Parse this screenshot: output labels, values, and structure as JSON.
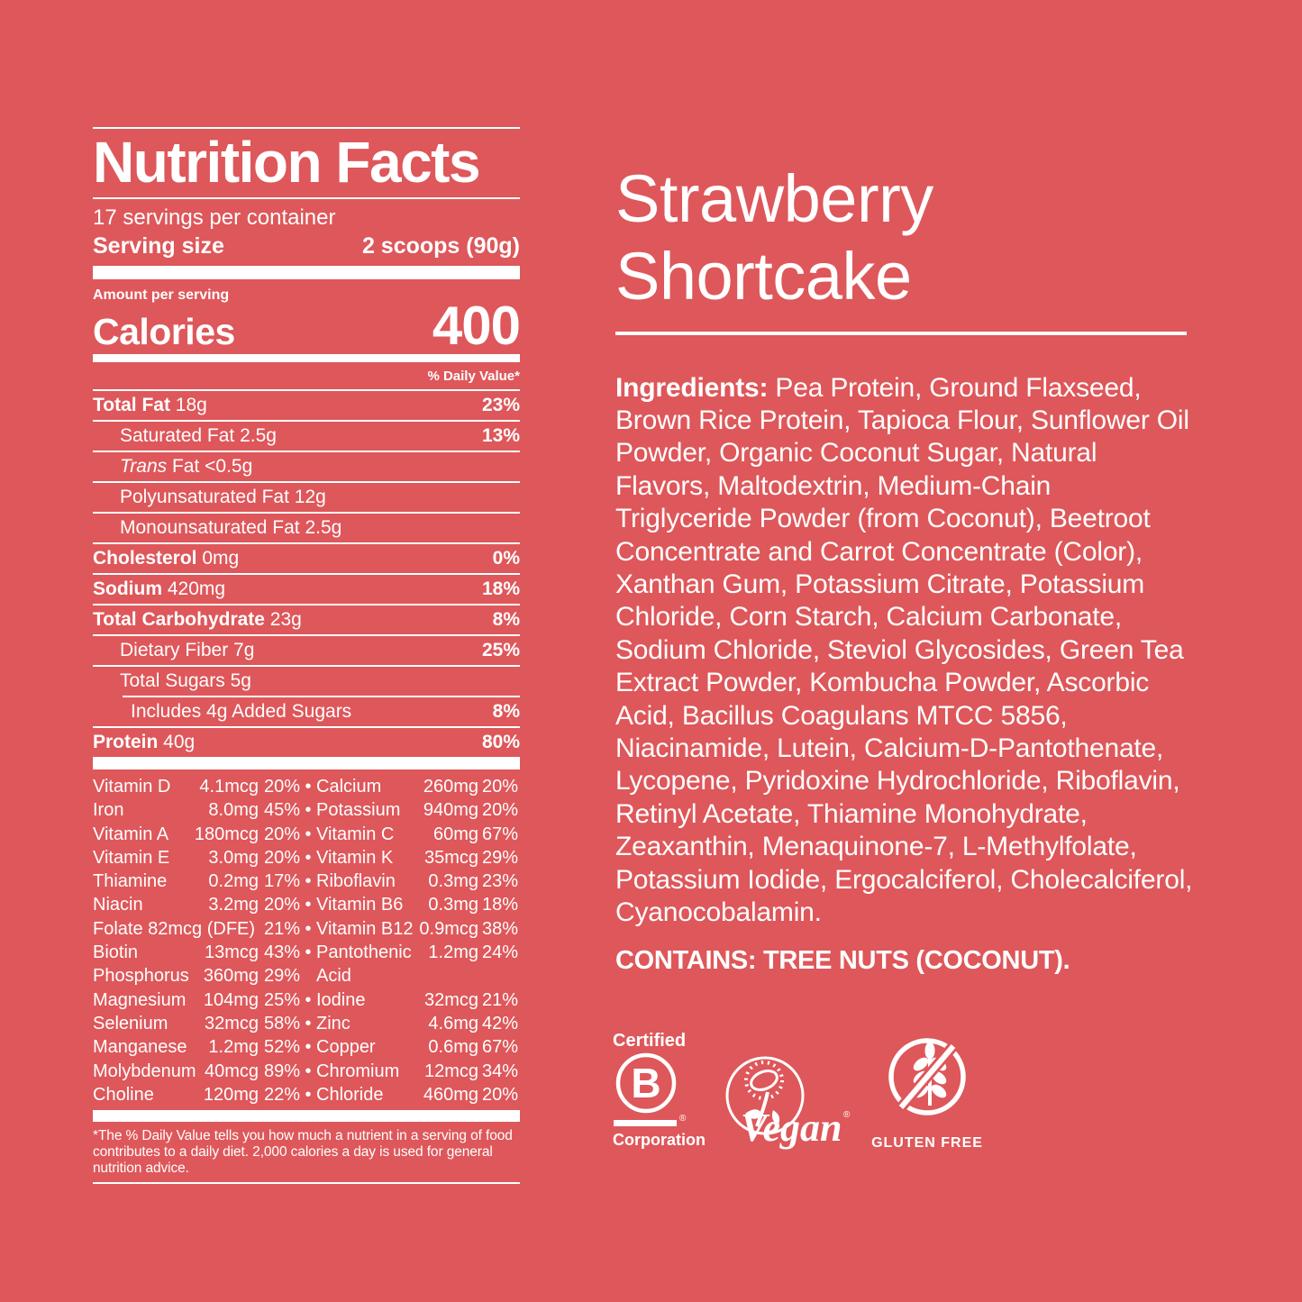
{
  "colors": {
    "background": "#DE575A",
    "foreground": "#FFFFFF"
  },
  "product": {
    "flavor": "Strawberry Shortcake",
    "ingredients_label": "Ingredients:",
    "ingredients": "Pea Protein, Ground Flaxseed, Brown Rice Protein, Tapioca Flour, Sunflower Oil Powder, Organic Coconut Sugar, Natural Flavors, Maltodextrin, Medium-Chain Triglyceride Powder (from Coconut), Beetroot Concentrate and Carrot Concentrate (Color), Xanthan Gum, Potassium Citrate, Potassium Chloride, Corn Starch, Calcium Carbonate, Sodium Chloride, Steviol Glycosides, Green Tea Extract Powder, Kombucha Powder, Ascorbic Acid, Bacillus Coagulans MTCC 5856, Niacinamide, Lutein, Calcium-D-Pantothenate, Lycopene, Pyridoxine Hydrochloride, Riboflavin, Retinyl Acetate, Thiamine Monohydrate, Zeaxanthin, Menaquinone-7, L-Methylfolate, Potassium Iodide, Ergocalciferol, Cholecalciferol, Cyanocobalamin.",
    "contains": "CONTAINS: TREE NUTS (COCONUT)."
  },
  "nutrition": {
    "title": "Nutrition Facts",
    "servings_per_container": "17 servings per container",
    "serving_size_label": "Serving size",
    "serving_size_value": "2 scoops (90g)",
    "amount_per_serving_label": "Amount per serving",
    "calories_label": "Calories",
    "calories_value": "400",
    "daily_value_header": "% Daily Value*",
    "rows": [
      {
        "bold": "Total Fat",
        "text": " 18g",
        "pct": "23%",
        "indent": 0
      },
      {
        "text": "Saturated Fat 2.5g",
        "pct": "13%",
        "indent": 1
      },
      {
        "italic": "Trans",
        "text": " Fat <0.5g",
        "pct": "",
        "indent": 1
      },
      {
        "text": "Polyunsaturated Fat 12g",
        "pct": "",
        "indent": 1
      },
      {
        "text": "Monounsaturated Fat 2.5g",
        "pct": "",
        "indent": 1
      },
      {
        "bold": "Cholesterol",
        "text": " 0mg",
        "pct": "0%",
        "indent": 0
      },
      {
        "bold": "Sodium",
        "text": " 420mg",
        "pct": "18%",
        "indent": 0
      },
      {
        "bold": "Total Carbohydrate",
        "text": " 23g",
        "pct": "8%",
        "indent": 0
      },
      {
        "text": "Dietary Fiber 7g",
        "pct": "25%",
        "indent": 1
      },
      {
        "text": "Total Sugars 5g",
        "pct": "",
        "indent": 1
      },
      {
        "text": "Includes 4g Added Sugars",
        "pct": "8%",
        "indent": 2,
        "inset": true
      },
      {
        "bold": "Protein",
        "text": " 40g",
        "pct": "80%",
        "indent": 0
      }
    ],
    "micronutrients": [
      [
        "Vitamin D",
        "4.1mcg",
        "20%",
        "•",
        "Calcium",
        "260mg",
        "20%"
      ],
      [
        "Iron",
        "8.0mg",
        "45%",
        "•",
        "Potassium",
        "940mg",
        "20%"
      ],
      [
        "Vitamin A",
        "180mcg",
        "20%",
        "•",
        "Vitamin C",
        "60mg",
        "67%"
      ],
      [
        "Vitamin E",
        "3.0mg",
        "20%",
        "•",
        "Vitamin K",
        "35mcg",
        "29%"
      ],
      [
        "Thiamine",
        "0.2mg",
        "17%",
        "•",
        "Riboflavin",
        "0.3mg",
        "23%"
      ],
      [
        "Niacin",
        "3.2mg",
        "20%",
        "•",
        "Vitamin B6",
        "0.3mg",
        "18%"
      ],
      [
        "Folate 82mcg (DFE)",
        "",
        "21%",
        "•",
        "Vitamin B12",
        "0.9mcg",
        "38%"
      ],
      [
        "Biotin",
        "13mcg",
        "43%",
        "•",
        "Pantothenic",
        "1.2mg",
        "24%"
      ],
      [
        "Phosphorus",
        "360mg",
        "29%",
        "",
        "Acid",
        "",
        ""
      ],
      [
        "Magnesium",
        "104mg",
        "25%",
        "•",
        "Iodine",
        "32mcg",
        "21%"
      ],
      [
        "Selenium",
        "32mcg",
        "58%",
        "•",
        "Zinc",
        "4.6mg",
        "42%"
      ],
      [
        "Manganese",
        "1.2mg",
        "52%",
        "•",
        "Copper",
        "0.6mg",
        "67%"
      ],
      [
        "Molybdenum",
        "40mcg",
        "89%",
        "•",
        "Chromium",
        "12mcg",
        "34%"
      ],
      [
        "Choline",
        "120mg",
        "22%",
        "•",
        "Chloride",
        "460mg",
        "20%"
      ]
    ],
    "footnote": "*The % Daily Value tells you how much a nutrient in a serving of food contributes to a daily diet. 2,000 calories a day is used for general nutrition advice."
  },
  "badges": {
    "bcorp": {
      "top": "Certified",
      "letter": "B",
      "bottom": "Corporation",
      "reg": "®"
    },
    "vegan": {
      "word": "Vegan",
      "reg": "®"
    },
    "gluten_free": {
      "label": "GLUTEN FREE"
    }
  }
}
